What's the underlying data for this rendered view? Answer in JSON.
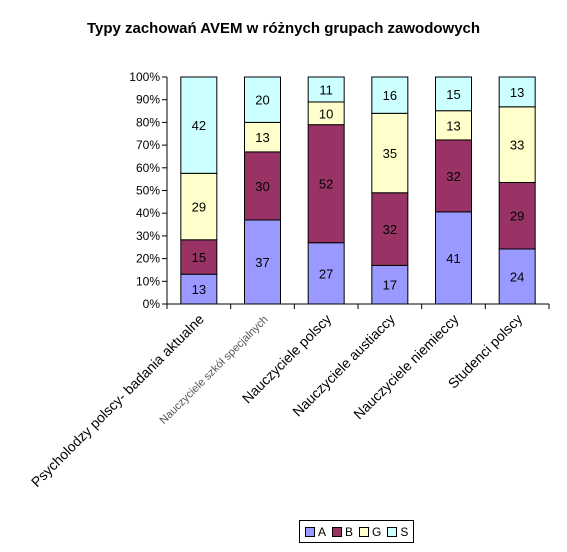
{
  "chart_data": {
    "type": "bar",
    "stacked": true,
    "percent_stacked": true,
    "title": "Typy zachowań AVEM w różnych grupach zawodowych",
    "categories": [
      "Psycholodzy polscy- badania aktualne",
      "Nauczyciele szkół specjalnych",
      "Nauczyciele polscy",
      "Nauczyciele austiaccy",
      "Nauczyciele niemieccy",
      "Studenci polscy"
    ],
    "series": [
      {
        "name": "A",
        "color": "#9999ff",
        "values": [
          13,
          37,
          27,
          17,
          41,
          24
        ]
      },
      {
        "name": "B",
        "color": "#993366",
        "values": [
          15,
          30,
          52,
          32,
          32,
          29
        ]
      },
      {
        "name": "G",
        "color": "#ffffcc",
        "values": [
          29,
          13,
          10,
          35,
          13,
          33
        ]
      },
      {
        "name": "S",
        "color": "#ccffff",
        "values": [
          42,
          20,
          11,
          16,
          15,
          13
        ]
      }
    ],
    "y_ticks": [
      "0%",
      "10%",
      "20%",
      "30%",
      "40%",
      "50%",
      "60%",
      "70%",
      "80%",
      "90%",
      "100%"
    ],
    "ylim": [
      0,
      100
    ],
    "grid": false,
    "legend_position": "bottom-right"
  }
}
